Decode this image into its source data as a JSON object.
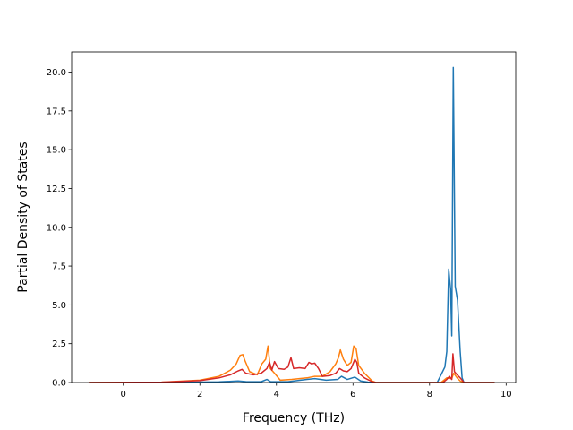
{
  "chart_data": {
    "type": "line",
    "title": "",
    "xlabel": "Frequency (THz)",
    "ylabel": "Partial Density of States",
    "xlim": [
      -1.35,
      10.25
    ],
    "ylim": [
      0,
      21.3
    ],
    "grid": false,
    "legend": "none",
    "x_ticks": [
      0,
      2,
      4,
      6,
      8,
      10
    ],
    "x_tick_labels": [
      "0",
      "2",
      "4",
      "6",
      "8",
      "10"
    ],
    "y_ticks": [
      0,
      2.5,
      5,
      7.5,
      10,
      12.5,
      15,
      17.5,
      20
    ],
    "y_tick_labels": [
      "0.0",
      "2.5",
      "5.0",
      "7.5",
      "10.0",
      "12.5",
      "15.0",
      "17.5",
      "20.0"
    ],
    "series": [
      {
        "color": "#1f77b4",
        "points": [
          [
            -0.9,
            0
          ],
          [
            1.0,
            0.0
          ],
          [
            2.5,
            0.04
          ],
          [
            3.0,
            0.1
          ],
          [
            3.2,
            0.06
          ],
          [
            3.6,
            0.05
          ],
          [
            3.75,
            0.2
          ],
          [
            3.85,
            0.05
          ],
          [
            4.3,
            0.05
          ],
          [
            4.8,
            0.2
          ],
          [
            5.0,
            0.25
          ],
          [
            5.3,
            0.15
          ],
          [
            5.6,
            0.2
          ],
          [
            5.7,
            0.4
          ],
          [
            5.85,
            0.2
          ],
          [
            6.05,
            0.35
          ],
          [
            6.2,
            0.1
          ],
          [
            6.4,
            0.02
          ],
          [
            6.6,
            0
          ],
          [
            8.2,
            0
          ],
          [
            8.4,
            1.0
          ],
          [
            8.45,
            2.0
          ],
          [
            8.5,
            7.3
          ],
          [
            8.55,
            6.0
          ],
          [
            8.58,
            3.0
          ],
          [
            8.62,
            20.3
          ],
          [
            8.67,
            6.2
          ],
          [
            8.73,
            5.3
          ],
          [
            8.8,
            2.0
          ],
          [
            8.85,
            0.3
          ],
          [
            8.9,
            0
          ],
          [
            9.7,
            0
          ]
        ]
      },
      {
        "color": "#ff7f0e",
        "points": [
          [
            -0.9,
            0
          ],
          [
            1.0,
            0.02
          ],
          [
            2.0,
            0.15
          ],
          [
            2.5,
            0.4
          ],
          [
            2.8,
            0.8
          ],
          [
            2.95,
            1.2
          ],
          [
            3.05,
            1.75
          ],
          [
            3.12,
            1.8
          ],
          [
            3.18,
            1.4
          ],
          [
            3.3,
            0.7
          ],
          [
            3.5,
            0.5
          ],
          [
            3.62,
            1.2
          ],
          [
            3.72,
            1.5
          ],
          [
            3.78,
            2.35
          ],
          [
            3.84,
            0.9
          ],
          [
            3.95,
            0.6
          ],
          [
            4.1,
            0.15
          ],
          [
            4.4,
            0.2
          ],
          [
            4.8,
            0.3
          ],
          [
            5.0,
            0.4
          ],
          [
            5.2,
            0.4
          ],
          [
            5.4,
            0.7
          ],
          [
            5.55,
            1.2
          ],
          [
            5.62,
            1.6
          ],
          [
            5.67,
            2.1
          ],
          [
            5.75,
            1.5
          ],
          [
            5.85,
            1.1
          ],
          [
            5.95,
            1.3
          ],
          [
            6.02,
            2.35
          ],
          [
            6.08,
            2.2
          ],
          [
            6.15,
            1.1
          ],
          [
            6.3,
            0.6
          ],
          [
            6.5,
            0.1
          ],
          [
            6.6,
            0
          ],
          [
            8.3,
            0
          ],
          [
            8.45,
            0.3
          ],
          [
            8.58,
            0.25
          ],
          [
            8.63,
            0.6
          ],
          [
            8.72,
            0.3
          ],
          [
            8.8,
            0.1
          ],
          [
            8.9,
            0
          ],
          [
            9.7,
            0
          ]
        ]
      },
      {
        "color": "#d62728",
        "points": [
          [
            -0.9,
            0
          ],
          [
            1.0,
            0.02
          ],
          [
            2.0,
            0.12
          ],
          [
            2.5,
            0.3
          ],
          [
            2.8,
            0.5
          ],
          [
            3.0,
            0.75
          ],
          [
            3.1,
            0.85
          ],
          [
            3.2,
            0.6
          ],
          [
            3.4,
            0.5
          ],
          [
            3.6,
            0.6
          ],
          [
            3.75,
            0.9
          ],
          [
            3.82,
            1.3
          ],
          [
            3.88,
            0.8
          ],
          [
            3.95,
            1.35
          ],
          [
            4.05,
            0.9
          ],
          [
            4.2,
            0.85
          ],
          [
            4.3,
            1.0
          ],
          [
            4.38,
            1.6
          ],
          [
            4.45,
            0.9
          ],
          [
            4.6,
            0.95
          ],
          [
            4.75,
            0.9
          ],
          [
            4.85,
            1.3
          ],
          [
            4.92,
            1.2
          ],
          [
            5.0,
            1.25
          ],
          [
            5.1,
            0.9
          ],
          [
            5.2,
            0.4
          ],
          [
            5.4,
            0.45
          ],
          [
            5.55,
            0.6
          ],
          [
            5.65,
            0.9
          ],
          [
            5.75,
            0.75
          ],
          [
            5.85,
            0.7
          ],
          [
            5.95,
            0.9
          ],
          [
            6.0,
            1.2
          ],
          [
            6.05,
            1.5
          ],
          [
            6.1,
            1.3
          ],
          [
            6.15,
            0.6
          ],
          [
            6.3,
            0.3
          ],
          [
            6.5,
            0.05
          ],
          [
            6.6,
            0
          ],
          [
            8.35,
            0
          ],
          [
            8.45,
            0.2
          ],
          [
            8.52,
            0.4
          ],
          [
            8.58,
            0.2
          ],
          [
            8.61,
            1.85
          ],
          [
            8.65,
            0.7
          ],
          [
            8.72,
            0.5
          ],
          [
            8.8,
            0.3
          ],
          [
            8.9,
            0
          ],
          [
            9.7,
            0
          ]
        ]
      }
    ]
  }
}
